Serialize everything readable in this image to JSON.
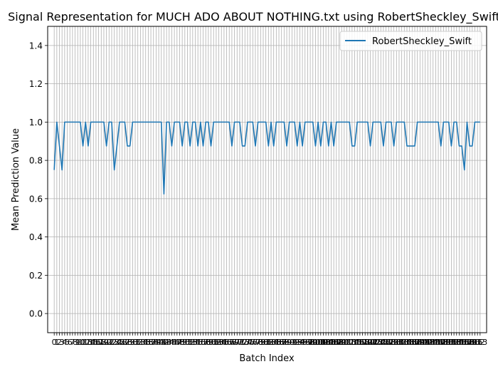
{
  "chart_data": {
    "type": "line",
    "title": "Signal Representation for MUCH ADO ABOUT NOTHING.txt using RobertSheckley_Swift",
    "xlabel": "Batch Index",
    "ylabel": "Mean Prediction Value",
    "ylim": [
      -0.1,
      1.5
    ],
    "yticks": [
      0.0,
      0.2,
      0.4,
      0.6,
      0.8,
      1.0,
      1.2,
      1.4
    ],
    "grid": true,
    "legend_position": "upper right",
    "series": [
      {
        "name": "RobertSheckley_Swift",
        "color": "#1f77b4",
        "x": [
          0,
          1,
          2,
          3,
          4,
          5,
          6,
          7,
          8,
          9,
          10,
          11,
          12,
          13,
          14,
          15,
          16,
          17,
          18,
          19,
          20,
          21,
          22,
          23,
          24,
          25,
          26,
          27,
          28,
          29,
          30,
          31,
          32,
          33,
          34,
          35,
          36,
          37,
          38,
          39,
          40,
          41,
          42,
          43,
          44,
          45,
          46,
          47,
          48,
          49,
          50,
          51,
          52,
          53,
          54,
          55,
          56,
          57,
          58,
          59,
          60,
          61,
          62,
          63,
          64,
          65,
          66,
          67,
          68,
          69,
          70,
          71,
          72,
          73,
          74,
          75,
          76,
          77,
          78,
          79,
          80,
          81,
          82,
          83,
          84,
          85,
          86,
          87,
          88,
          89,
          90,
          91,
          92,
          93,
          94,
          95,
          96,
          97,
          98,
          99,
          100,
          101,
          102,
          103,
          104,
          105,
          106,
          107,
          108,
          109,
          110,
          111,
          112,
          113,
          114,
          115,
          116,
          117,
          118,
          119,
          120,
          121,
          122,
          123,
          124,
          125,
          126,
          127,
          128,
          129,
          130,
          131,
          132,
          133,
          134,
          135,
          136,
          137,
          138,
          139,
          140,
          141,
          142,
          143,
          144,
          145,
          146,
          147,
          148,
          149,
          150,
          151,
          152,
          153,
          154,
          155,
          156,
          157,
          158,
          159,
          160,
          161,
          162,
          163
        ],
        "values": [
          0.75,
          1.0,
          0.875,
          0.75,
          1.0,
          1.0,
          1.0,
          1.0,
          1.0,
          1.0,
          1.0,
          0.875,
          1.0,
          0.875,
          1.0,
          1.0,
          1.0,
          1.0,
          1.0,
          1.0,
          0.875,
          1.0,
          1.0,
          0.75,
          0.875,
          1.0,
          1.0,
          1.0,
          0.875,
          0.875,
          1.0,
          1.0,
          1.0,
          1.0,
          1.0,
          1.0,
          1.0,
          1.0,
          1.0,
          1.0,
          1.0,
          1.0,
          0.625,
          1.0,
          1.0,
          0.875,
          1.0,
          1.0,
          1.0,
          0.875,
          1.0,
          1.0,
          0.875,
          1.0,
          1.0,
          0.875,
          1.0,
          0.875,
          1.0,
          1.0,
          0.875,
          1.0,
          1.0,
          1.0,
          1.0,
          1.0,
          1.0,
          1.0,
          0.875,
          1.0,
          1.0,
          1.0,
          0.875,
          0.875,
          1.0,
          1.0,
          1.0,
          0.875,
          1.0,
          1.0,
          1.0,
          1.0,
          0.875,
          1.0,
          0.875,
          1.0,
          1.0,
          1.0,
          1.0,
          0.875,
          1.0,
          1.0,
          1.0,
          0.875,
          1.0,
          0.875,
          1.0,
          1.0,
          1.0,
          1.0,
          0.875,
          1.0,
          0.875,
          1.0,
          1.0,
          0.875,
          1.0,
          0.875,
          1.0,
          1.0,
          1.0,
          1.0,
          1.0,
          1.0,
          0.875,
          0.875,
          1.0,
          1.0,
          1.0,
          1.0,
          1.0,
          0.875,
          1.0,
          1.0,
          1.0,
          1.0,
          0.875,
          1.0,
          1.0,
          1.0,
          0.875,
          1.0,
          1.0,
          1.0,
          1.0,
          0.875,
          0.875,
          0.875,
          0.875,
          1.0,
          1.0,
          1.0,
          1.0,
          1.0,
          1.0,
          1.0,
          1.0,
          1.0,
          0.875,
          1.0,
          1.0,
          1.0,
          0.875,
          1.0,
          1.0,
          0.875,
          0.875,
          0.75,
          1.0,
          0.875,
          0.875,
          1.0,
          1.0,
          1.0
        ]
      }
    ]
  }
}
